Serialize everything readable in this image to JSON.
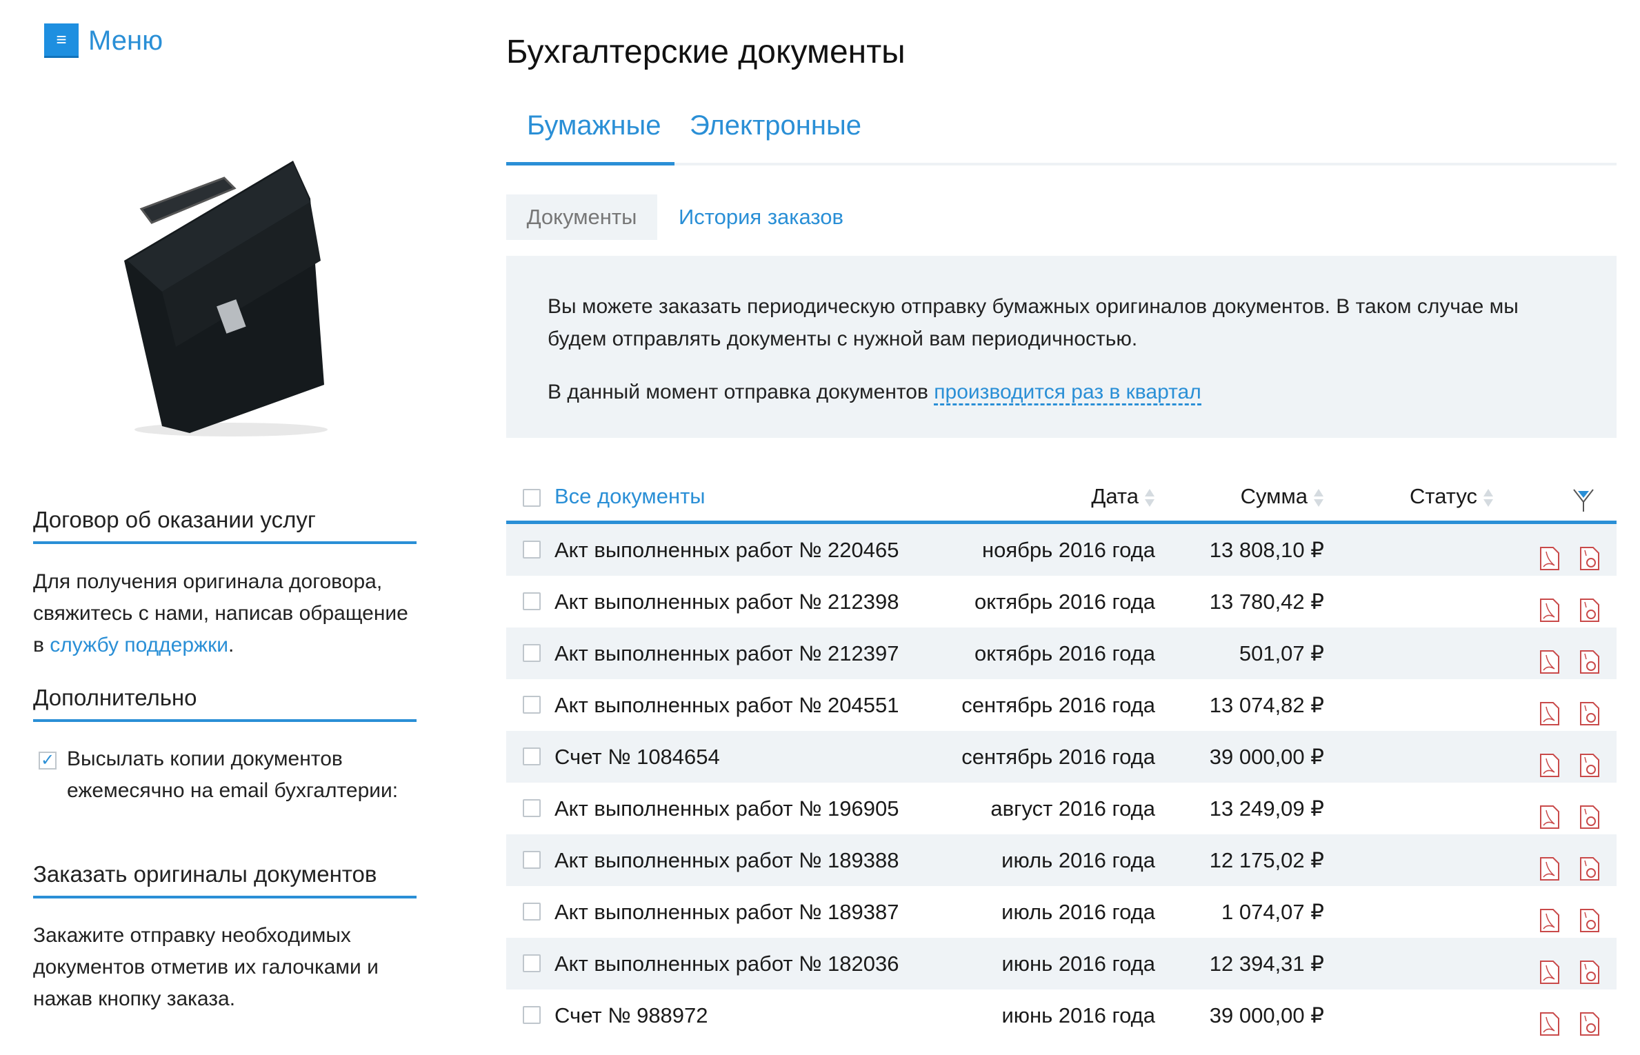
{
  "menu": {
    "label": "Меню",
    "icon": "hamburger-icon"
  },
  "page_title": "Бухгалтерские документы",
  "tabs": [
    {
      "label": "Бумажные",
      "active": true
    },
    {
      "label": "Электронные",
      "active": false
    }
  ],
  "subtabs": [
    {
      "label": "Документы",
      "active": true
    },
    {
      "label": "История заказов",
      "active": false
    }
  ],
  "info": {
    "line1": "Вы можете заказать периодическую отправку бумажных оригиналов документов. В таком случае мы будем отправлять документы с нужной вам периодичностью.",
    "line2_prefix": "В данный момент отправка документов",
    "line2_link": "производится раз в квартал"
  },
  "sidebar": {
    "contract": {
      "heading": "Договор об оказании услуг",
      "text": "Для получения оригинала договора, свяжитесь с нами, написав обращение в",
      "link": "службу поддержки",
      "suffix": "."
    },
    "extra": {
      "heading": "Дополнительно",
      "checkbox_label": "Высылать копии документов ежемесячно на email бухгалтерии:",
      "checked": true
    },
    "order": {
      "heading": "Заказать оригиналы документов",
      "text": "Закажите отправку необходимых документов отметив их галочками и нажав кнопку заказа."
    }
  },
  "table": {
    "headers": {
      "all": "Все документы",
      "date": "Дата",
      "sum": "Сумма",
      "status": "Статус",
      "filter_icon": "filter-icon"
    },
    "rows": [
      {
        "name": "Акт выполненных работ № 220465",
        "date": "ноябрь 2016 года",
        "sum": "13 808,10 ₽"
      },
      {
        "name": "Акт выполненных работ № 212398",
        "date": "октябрь 2016 года",
        "sum": "13 780,42 ₽"
      },
      {
        "name": "Акт выполненных работ № 212397",
        "date": "октябрь 2016 года",
        "sum": "501,07 ₽"
      },
      {
        "name": "Акт выполненных работ № 204551",
        "date": "сентябрь 2016 года",
        "sum": "13 074,82 ₽"
      },
      {
        "name": "Счет № 1084654",
        "date": "сентябрь 2016 года",
        "sum": "39 000,00 ₽"
      },
      {
        "name": "Акт выполненных работ № 196905",
        "date": "август 2016 года",
        "sum": "13 249,09 ₽"
      },
      {
        "name": "Акт выполненных работ № 189388",
        "date": "июль 2016 года",
        "sum": "12 175,02 ₽"
      },
      {
        "name": "Акт выполненных работ № 189387",
        "date": "июль 2016 года",
        "sum": "1 074,07 ₽"
      },
      {
        "name": "Акт выполненных работ № 182036",
        "date": "июнь 2016 года",
        "sum": "12 394,31 ₽"
      },
      {
        "name": "Счет № 988972",
        "date": "июнь 2016 года",
        "sum": "39 000,00 ₽"
      }
    ]
  },
  "colors": {
    "accent": "#2a8fd6",
    "shade": "#eff3f6",
    "pdf_icon": "#c94a4a"
  }
}
